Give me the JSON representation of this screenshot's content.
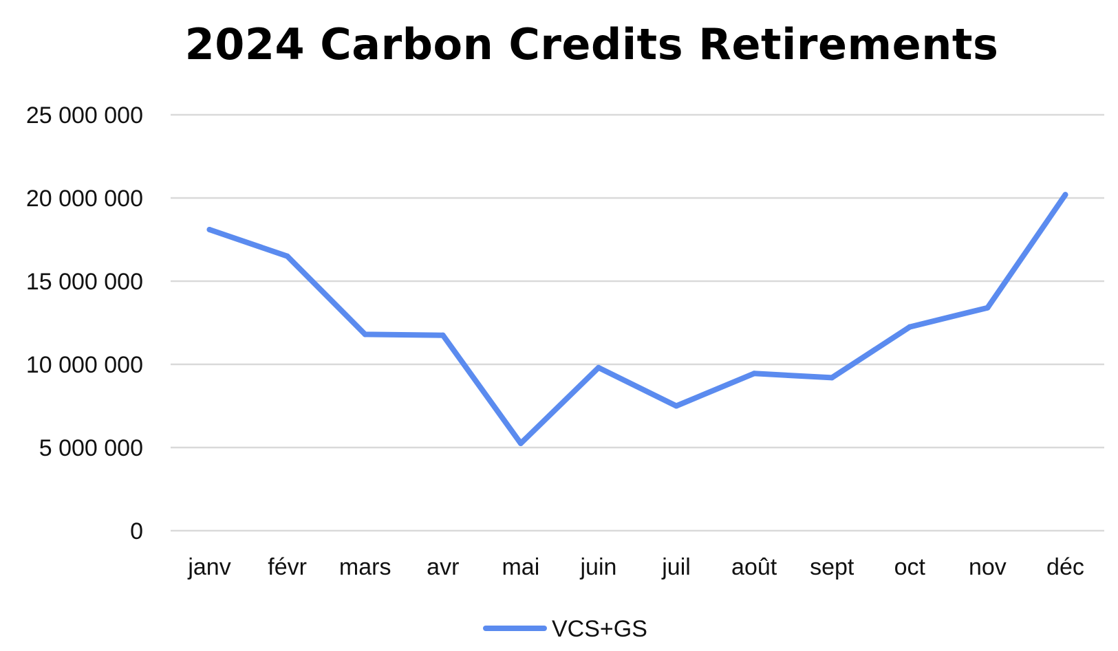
{
  "chart_data": {
    "type": "line",
    "title": "2024 Carbon Credits Retirements",
    "xlabel": "",
    "ylabel": "",
    "categories": [
      "janv",
      "févr",
      "mars",
      "avr",
      "mai",
      "juin",
      "juil",
      "août",
      "sept",
      "oct",
      "nov",
      "déc"
    ],
    "series": [
      {
        "name": "VCS+GS",
        "color": "#5b8bef",
        "values": [
          18100000,
          16500000,
          11800000,
          11750000,
          5250000,
          9800000,
          7500000,
          9450000,
          9200000,
          12250000,
          13400000,
          20200000
        ]
      }
    ],
    "ylim": [
      0,
      25000000
    ],
    "yticks": [
      0,
      5000000,
      10000000,
      15000000,
      20000000,
      25000000
    ],
    "ytick_labels": [
      "0",
      "5 000 000",
      "10 000 000",
      "15 000 000",
      "20 000 000",
      "25 000 000"
    ],
    "grid": true,
    "legend_position": "bottom"
  }
}
